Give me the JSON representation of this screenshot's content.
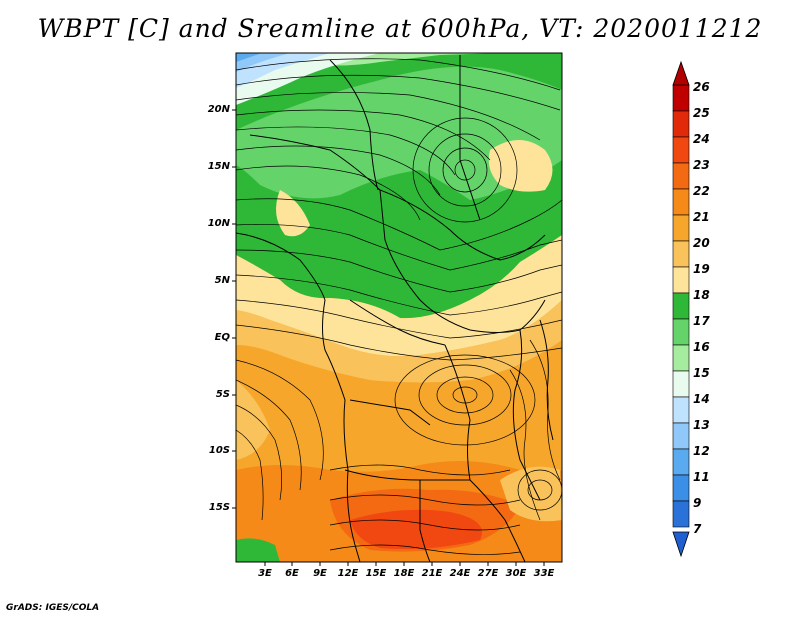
{
  "title": "WBPT [C] and Sreamline at 600hPa, VT: 2020011212",
  "credit": "GrADS: IGES/COLA",
  "map": {
    "lat_labels": [
      "20N",
      "15N",
      "10N",
      "5N",
      "EQ",
      "5S",
      "10S",
      "15S"
    ],
    "lon_labels": [
      "3E",
      "6E",
      "9E",
      "12E",
      "15E",
      "18E",
      "21E",
      "24E",
      "27E",
      "30E",
      "33E"
    ]
  },
  "colorbar": {
    "labels": [
      "26",
      "25",
      "24",
      "23",
      "22",
      "21",
      "20",
      "19",
      "18",
      "17",
      "16",
      "15",
      "14",
      "13",
      "12",
      "11",
      "9",
      "7"
    ],
    "colors": [
      "#c00000",
      "#e02a0a",
      "#f04810",
      "#f46a12",
      "#f58a18",
      "#f6a62a",
      "#f9c25a",
      "#fde49a",
      "#2fb838",
      "#64d36a",
      "#a6ec9e",
      "#e9faef",
      "#bfe2ff",
      "#8fc8f9",
      "#5aaaf0",
      "#3c8fe6",
      "#2a72d8"
    ]
  }
}
